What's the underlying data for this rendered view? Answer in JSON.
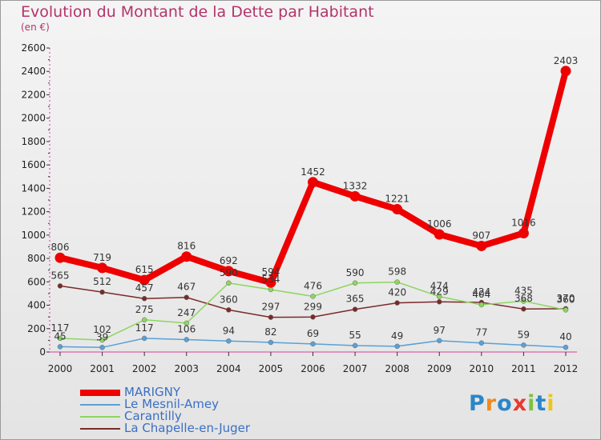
{
  "title": "Evolution du Montant de la Dette par Habitant",
  "subtitle": "(en €)",
  "logo": {
    "letters": [
      "P",
      "r",
      "o",
      "x",
      "i",
      "t",
      "i"
    ],
    "colors": [
      "#2b86c8",
      "#f08a1c",
      "#2b86c8",
      "#e63a2e",
      "#7cc242",
      "#2b86c8",
      "#f0c419"
    ]
  },
  "legend": [
    {
      "label": "MARIGNY",
      "color": "#ee0000"
    },
    {
      "label": "Le Mesnil-Amey",
      "color": "#5aa0d8"
    },
    {
      "label": "Carantilly",
      "color": "#8cd660"
    },
    {
      "label": "La Chapelle-en-Juger",
      "color": "#7a2a2a"
    }
  ],
  "chart_data": {
    "type": "line",
    "title": "Evolution du Montant de la Dette par Habitant",
    "subtitle": "(en €)",
    "x": [
      "2000",
      "2001",
      "2002",
      "2003",
      "2004",
      "2005",
      "2006",
      "2007",
      "2008",
      "2009",
      "2010",
      "2011",
      "2012"
    ],
    "ylim": [
      0,
      2600
    ],
    "yticks": [
      0,
      200,
      400,
      600,
      800,
      1000,
      1200,
      1400,
      1600,
      1800,
      2000,
      2200,
      2400,
      2600
    ],
    "grid": false,
    "legend_position": "bottom-left",
    "series": [
      {
        "name": "MARIGNY",
        "color": "#ee0000",
        "values": [
          806,
          719,
          615,
          816,
          692,
          594,
          1452,
          1332,
          1221,
          1006,
          907,
          1016,
          2403
        ]
      },
      {
        "name": "Le Mesnil-Amey",
        "color": "#5aa0d8",
        "values": [
          45,
          39,
          117,
          106,
          94,
          82,
          69,
          55,
          49,
          97,
          77,
          59,
          40
        ]
      },
      {
        "name": "Carantilly",
        "color": "#8cd660",
        "values": [
          117,
          102,
          275,
          247,
          590,
          534,
          476,
          590,
          598,
          474,
          404,
          435,
          360
        ]
      },
      {
        "name": "La Chapelle-en-Juger",
        "color": "#7a2a2a",
        "values": [
          565,
          512,
          457,
          467,
          360,
          297,
          299,
          365,
          420,
          429,
          424,
          368,
          370
        ]
      }
    ]
  }
}
